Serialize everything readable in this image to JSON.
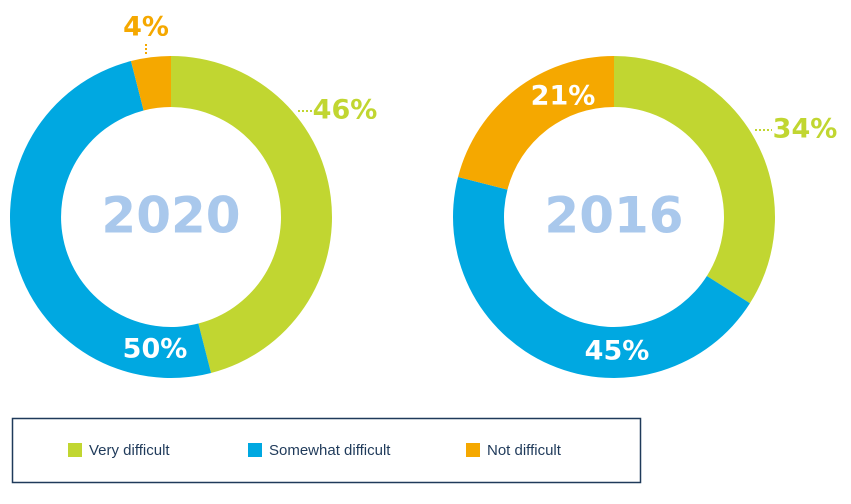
{
  "chart_data": [
    {
      "type": "donut",
      "title": "2020",
      "categories": [
        "Very difficult",
        "Somewhat difficult",
        "Not difficult"
      ],
      "values": [
        46,
        50,
        4
      ],
      "value_labels": [
        "46%",
        "50%",
        "4%"
      ],
      "colors": [
        "#c1d631",
        "#00a8e1",
        "#f5a800"
      ]
    },
    {
      "type": "donut",
      "title": "2016",
      "categories": [
        "Very difficult",
        "Somewhat difficult",
        "Not difficult"
      ],
      "values": [
        34,
        45,
        21
      ],
      "value_labels": [
        "34%",
        "45%",
        "21%"
      ],
      "colors": [
        "#c1d631",
        "#00a8e1",
        "#f5a800"
      ]
    }
  ]
}
